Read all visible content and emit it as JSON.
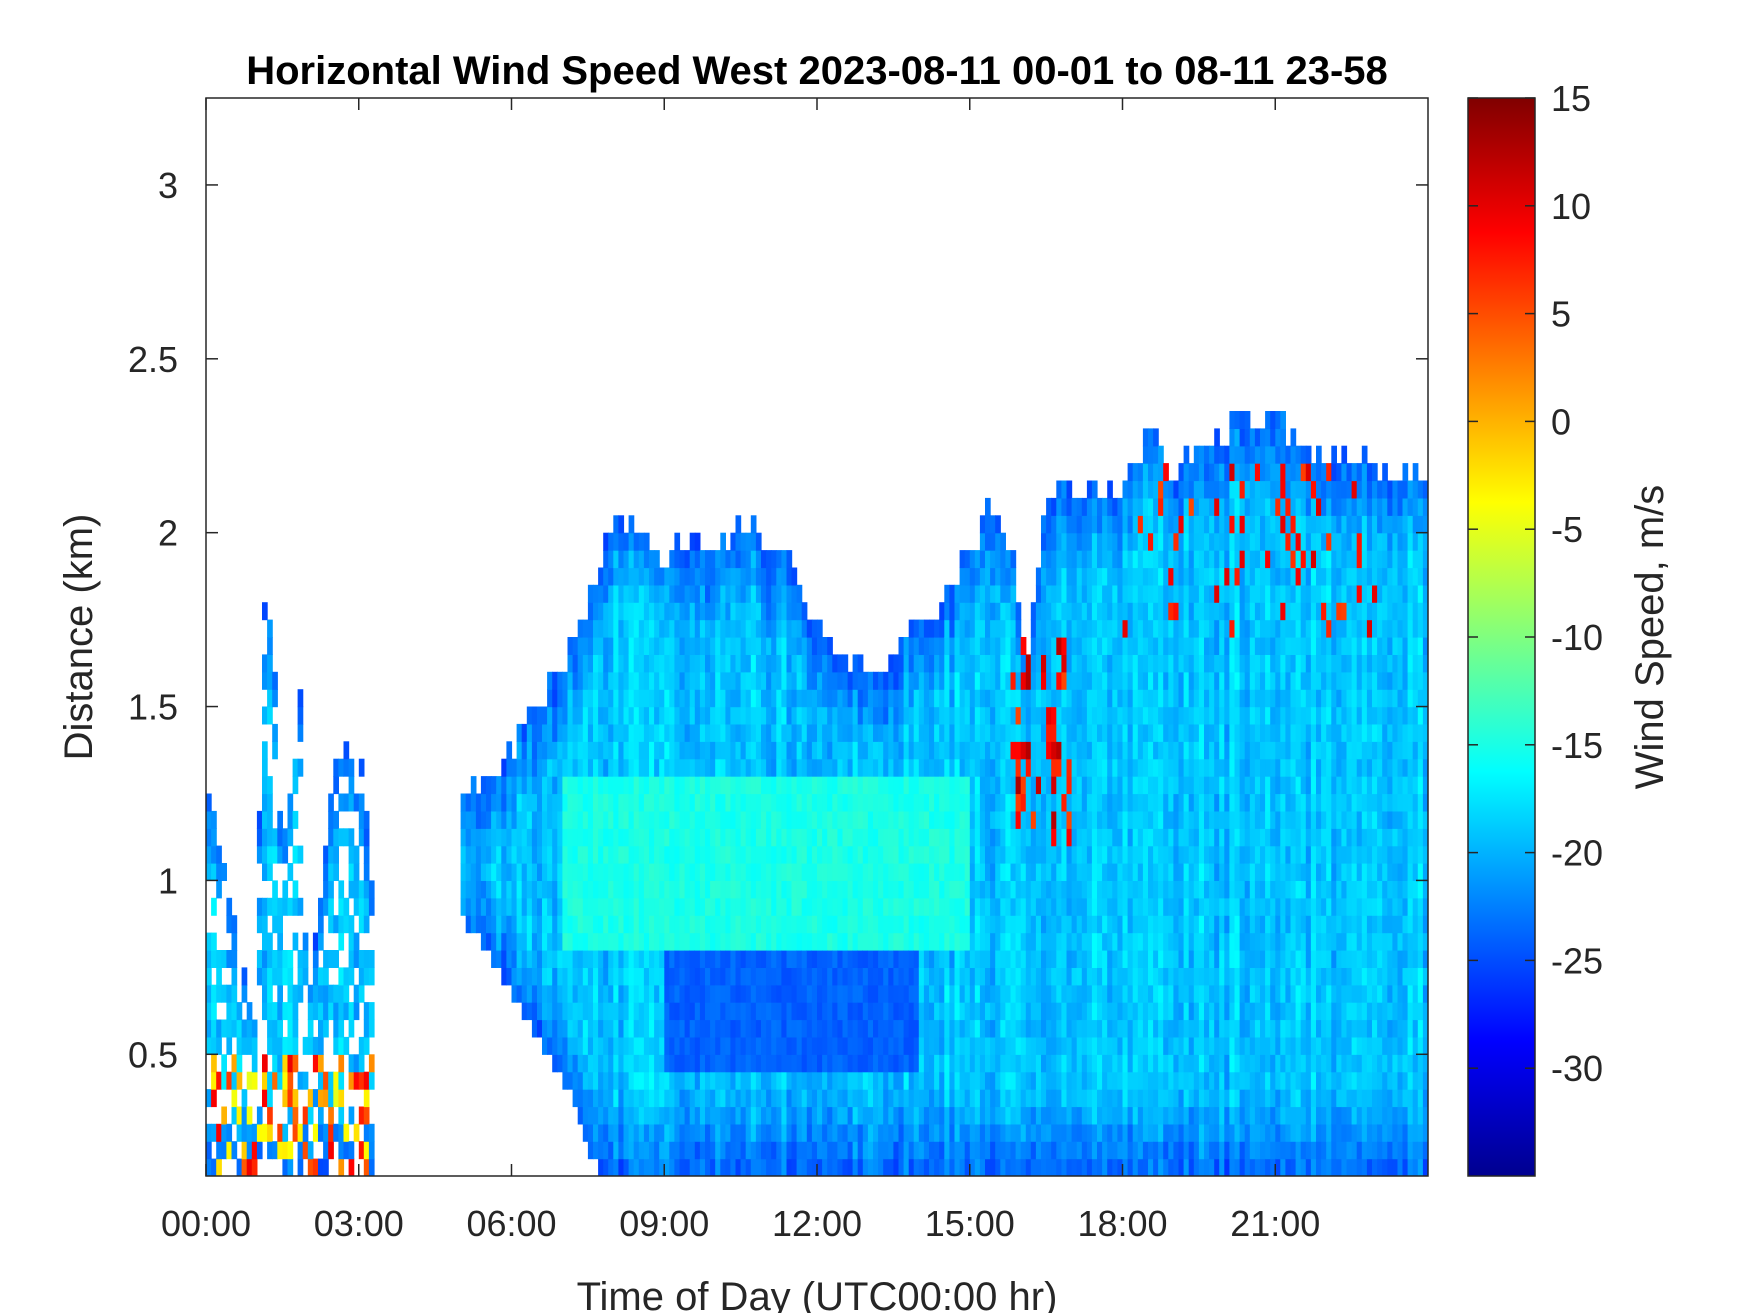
{
  "chart_data": {
    "type": "heatmap",
    "title": "Horizontal Wind Speed West 2023-08-11 00-01 to 08-11 23-58",
    "xlabel": "Time of Day (UTC00:00 hr)",
    "ylabel": "Distance (km)",
    "colorbar_label": "Wind Speed, m/s",
    "xlim": [
      0,
      24
    ],
    "ylim": [
      0.15,
      3.25
    ],
    "x_ticks": [
      0,
      3,
      6,
      9,
      12,
      15,
      18,
      21
    ],
    "x_tick_labels": [
      "00:00",
      "03:00",
      "06:00",
      "09:00",
      "12:00",
      "15:00",
      "18:00",
      "21:00"
    ],
    "y_ticks": [
      0.5,
      1,
      1.5,
      2,
      2.5,
      3
    ],
    "y_tick_labels": [
      "0.5",
      "1",
      "1.5",
      "2",
      "2.5",
      "3"
    ],
    "clim": [
      -35,
      15
    ],
    "colorbar_ticks": [
      15,
      10,
      5,
      0,
      -5,
      -10,
      -15,
      -20,
      -25,
      -30
    ],
    "colorbar_tick_labels": [
      "15",
      "10",
      "5",
      "0",
      "-5",
      "-10",
      "-15",
      "-20",
      "-25",
      "-30"
    ],
    "colormap": "jet",
    "grid": false,
    "data_top_km": [
      [
        0.0,
        1.3
      ],
      [
        0.5,
        0.9
      ],
      [
        1.0,
        0.6
      ],
      [
        1.1,
        1.8
      ],
      [
        1.3,
        1.8
      ],
      [
        1.5,
        1.0
      ],
      [
        1.75,
        1.5
      ],
      [
        1.85,
        1.5
      ],
      [
        2.0,
        0.7
      ],
      [
        2.55,
        1.35
      ],
      [
        2.8,
        1.38
      ],
      [
        3.05,
        1.35
      ],
      [
        3.3,
        0.9
      ],
      [
        3.31,
        0.0
      ],
      [
        4.95,
        0.0
      ],
      [
        4.96,
        1.2
      ],
      [
        5.5,
        1.3
      ],
      [
        6.5,
        1.5
      ],
      [
        7.0,
        1.6
      ],
      [
        7.5,
        1.8
      ],
      [
        8.0,
        2.05
      ],
      [
        9.0,
        1.95
      ],
      [
        10.0,
        1.95
      ],
      [
        10.5,
        2.05
      ],
      [
        11.0,
        1.95
      ],
      [
        11.5,
        1.9
      ],
      [
        12.0,
        1.75
      ],
      [
        12.5,
        1.65
      ],
      [
        13.0,
        1.58
      ],
      [
        13.5,
        1.65
      ],
      [
        14.0,
        1.75
      ],
      [
        14.5,
        1.8
      ],
      [
        15.0,
        1.95
      ],
      [
        15.5,
        2.1
      ],
      [
        15.9,
        1.9
      ],
      [
        16.1,
        1.6
      ],
      [
        16.5,
        2.1
      ],
      [
        17.0,
        2.15
      ],
      [
        18.0,
        2.1
      ],
      [
        18.5,
        2.3
      ],
      [
        19.0,
        2.15
      ],
      [
        19.5,
        2.25
      ],
      [
        20.0,
        2.3
      ],
      [
        21.0,
        2.35
      ],
      [
        22.0,
        2.2
      ],
      [
        23.0,
        2.2
      ],
      [
        24.0,
        2.15
      ]
    ],
    "data_bottom_km": [
      [
        0.0,
        0.15
      ],
      [
        3.3,
        0.15
      ],
      [
        4.95,
        0.9
      ],
      [
        5.5,
        0.8
      ],
      [
        6.5,
        0.55
      ],
      [
        7.3,
        0.35
      ],
      [
        7.6,
        0.2
      ],
      [
        7.8,
        0.15
      ],
      [
        24.0,
        0.15
      ]
    ],
    "typical_speed_ms": -19,
    "dark_band_speed_ms": -25,
    "strong_shear_speed_ms": 5
  }
}
